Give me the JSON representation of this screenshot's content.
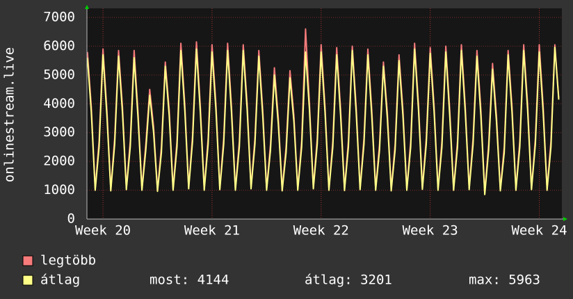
{
  "chart_data": {
    "type": "line",
    "y_label": "onlinestream.live",
    "x": [
      -1,
      -0.75,
      -0.5,
      -0.25,
      0,
      0.25,
      0.5,
      0.75,
      1,
      1.25,
      1.5,
      1.75,
      2,
      2.25,
      2.5,
      2.75,
      3,
      3.25,
      3.5,
      3.75,
      4,
      4.25,
      4.5,
      4.75,
      5,
      5.25,
      5.5,
      5.75,
      6,
      6.25,
      6.5,
      6.75,
      7,
      7.25,
      7.5,
      7.75,
      8,
      8.25,
      8.5,
      8.75,
      9,
      9.25,
      9.5,
      9.75,
      10,
      10.25,
      10.5,
      10.75,
      11,
      11.25,
      11.5,
      11.75,
      12,
      12.25,
      12.5,
      12.75,
      13,
      13.25,
      13.5,
      13.75,
      14,
      14.25,
      14.5,
      14.75,
      15,
      15.25,
      15.5,
      15.75,
      16,
      16.25,
      16.5,
      16.75,
      17,
      17.25,
      17.5,
      17.75,
      18,
      18.25,
      18.5,
      18.75,
      19,
      19.25,
      19.5,
      19.75,
      20,
      20.25,
      20.5,
      20.75,
      21,
      21.25,
      21.5,
      21.75,
      22,
      22.25,
      22.5,
      22.75,
      23,
      23.25,
      23.5,
      23.75,
      24,
      24.25,
      24.5,
      24.75,
      25,
      25.25,
      25.5,
      25.75,
      26,
      26.25,
      26.5,
      26.75,
      27,
      27.25,
      27.5,
      27.75,
      28,
      28.25,
      28.5,
      28.75,
      29,
      29.25
    ],
    "series": [
      {
        "name": "legtöbb",
        "color": "#f77b7b",
        "values": [
          5800,
          3900,
          1050,
          2700,
          5900,
          3800,
          1030,
          2800,
          5850,
          3900,
          1070,
          2700,
          5850,
          3700,
          1050,
          2600,
          4500,
          3200,
          1010,
          2500,
          5450,
          3800,
          1050,
          2700,
          6100,
          4000,
          1100,
          2900,
          6150,
          3900,
          1050,
          2800,
          6050,
          4000,
          1070,
          2800,
          6100,
          3900,
          1050,
          2700,
          6050,
          4000,
          1100,
          2800,
          5850,
          3800,
          1050,
          2600,
          5250,
          3500,
          1030,
          2500,
          5150,
          3600,
          1050,
          2700,
          6600,
          4000,
          1100,
          2800,
          6050,
          3900,
          1050,
          2700,
          5950,
          3800,
          1040,
          2700,
          6000,
          3900,
          1070,
          2800,
          5900,
          3800,
          1050,
          2600,
          5450,
          3700,
          1030,
          2600,
          5700,
          3800,
          1050,
          2700,
          6100,
          4000,
          1080,
          2800,
          5950,
          3900,
          1050,
          2700,
          6000,
          3800,
          1050,
          2700,
          6050,
          3900,
          1070,
          2800,
          5850,
          3800,
          900,
          2600,
          5400,
          3600,
          1030,
          2500,
          5850,
          3900,
          1050,
          2700,
          6050,
          4000,
          1070,
          2800,
          6050,
          3900,
          1050,
          2700,
          6050,
          4200
        ]
      },
      {
        "name": "átlag",
        "color": "#ffff88",
        "values": [
          5600,
          3700,
          1000,
          2500,
          5700,
          3600,
          980,
          2600,
          5650,
          3700,
          1020,
          2500,
          5600,
          3500,
          1000,
          2400,
          4300,
          3000,
          960,
          2300,
          5300,
          3600,
          1000,
          2500,
          5850,
          3800,
          1050,
          2700,
          5900,
          3700,
          1000,
          2600,
          5800,
          3800,
          1020,
          2600,
          5850,
          3700,
          1000,
          2500,
          5850,
          3800,
          1050,
          2600,
          5650,
          3600,
          1000,
          2400,
          5000,
          3300,
          980,
          2300,
          4900,
          3400,
          1000,
          2500,
          5800,
          3800,
          1050,
          2600,
          5800,
          3700,
          1000,
          2500,
          5700,
          3600,
          990,
          2500,
          5850,
          3700,
          1020,
          2600,
          5700,
          3600,
          1000,
          2400,
          5300,
          3500,
          980,
          2400,
          5500,
          3600,
          1000,
          2500,
          5900,
          3800,
          1030,
          2600,
          5750,
          3700,
          1000,
          2500,
          5800,
          3600,
          1000,
          2500,
          5850,
          3700,
          1020,
          2600,
          5650,
          3600,
          850,
          2400,
          5200,
          3400,
          980,
          2300,
          5700,
          3700,
          1000,
          2500,
          5850,
          3800,
          1020,
          2600,
          5800,
          3700,
          1000,
          2500,
          5963,
          4144
        ]
      }
    ],
    "stats": [
      "most: 4144",
      "átlag: 3201",
      "max: 5963"
    ],
    "xlim": [
      -1.03,
      29.45
    ],
    "xticks": [
      {
        "value": 0,
        "label": "Week 20"
      },
      {
        "value": 7,
        "label": "Week 21"
      },
      {
        "value": 14,
        "label": "Week 22"
      },
      {
        "value": 21,
        "label": "Week 23"
      },
      {
        "value": 28,
        "label": "Week 24"
      }
    ],
    "ylim": [
      0,
      7000
    ],
    "yticks": [
      0,
      1000,
      2000,
      3000,
      4000,
      5000,
      6000,
      7000
    ],
    "grid": true
  }
}
